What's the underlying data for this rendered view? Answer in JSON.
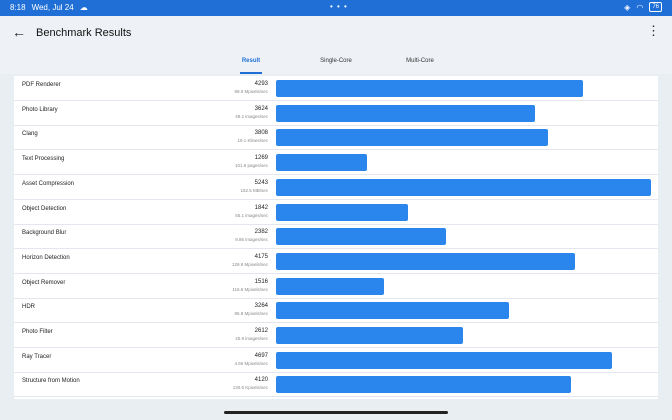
{
  "status": {
    "time": "8:18",
    "date": "Wed, Jul 24",
    "dots": "• • •",
    "battery": "76"
  },
  "app": {
    "title": "Benchmark Results"
  },
  "tabs": [
    {
      "label": "Result",
      "active": true
    },
    {
      "label": "Single-Core",
      "active": false
    },
    {
      "label": "Multi-Core",
      "active": false
    }
  ],
  "rows": [
    {
      "name": "PDF Renderer",
      "score": "4293",
      "rate": "99.0 Mpixels/sec",
      "value": 4293
    },
    {
      "name": "Photo Library",
      "score": "3624",
      "rate": "49.2 images/sec",
      "value": 3624
    },
    {
      "name": "Clang",
      "score": "3808",
      "rate": "19.1 Klines/sec",
      "value": 3808
    },
    {
      "name": "Text Processing",
      "score": "1269",
      "rate": "101.6 pages/sec",
      "value": 1269
    },
    {
      "name": "Asset Compression",
      "score": "5243",
      "rate": "162.5 MB/sec",
      "value": 5243
    },
    {
      "name": "Object Detection",
      "score": "1842",
      "rate": "55.1 images/sec",
      "value": 1842
    },
    {
      "name": "Background Blur",
      "score": "2382",
      "rate": "9.86 images/sec",
      "value": 2382
    },
    {
      "name": "Horizon Detection",
      "score": "4175",
      "rate": "129.9 Mpixels/sec",
      "value": 4175
    },
    {
      "name": "Object Remover",
      "score": "1516",
      "rate": "116.6 Mpixels/sec",
      "value": 1516
    },
    {
      "name": "HDR",
      "score": "3264",
      "rate": "95.8 Mpixels/sec",
      "value": 3264
    },
    {
      "name": "Photo Filter",
      "score": "2612",
      "rate": "25.9 images/sec",
      "value": 2612
    },
    {
      "name": "Ray Tracer",
      "score": "4697",
      "rate": "4.55 Mpixels/sec",
      "value": 4697
    },
    {
      "name": "Structure from Motion",
      "score": "4120",
      "rate": "130.5 Kpixels/sec",
      "value": 4120
    }
  ],
  "colors": {
    "accent": "#1f6fd6",
    "bar": "#2a86ec"
  }
}
